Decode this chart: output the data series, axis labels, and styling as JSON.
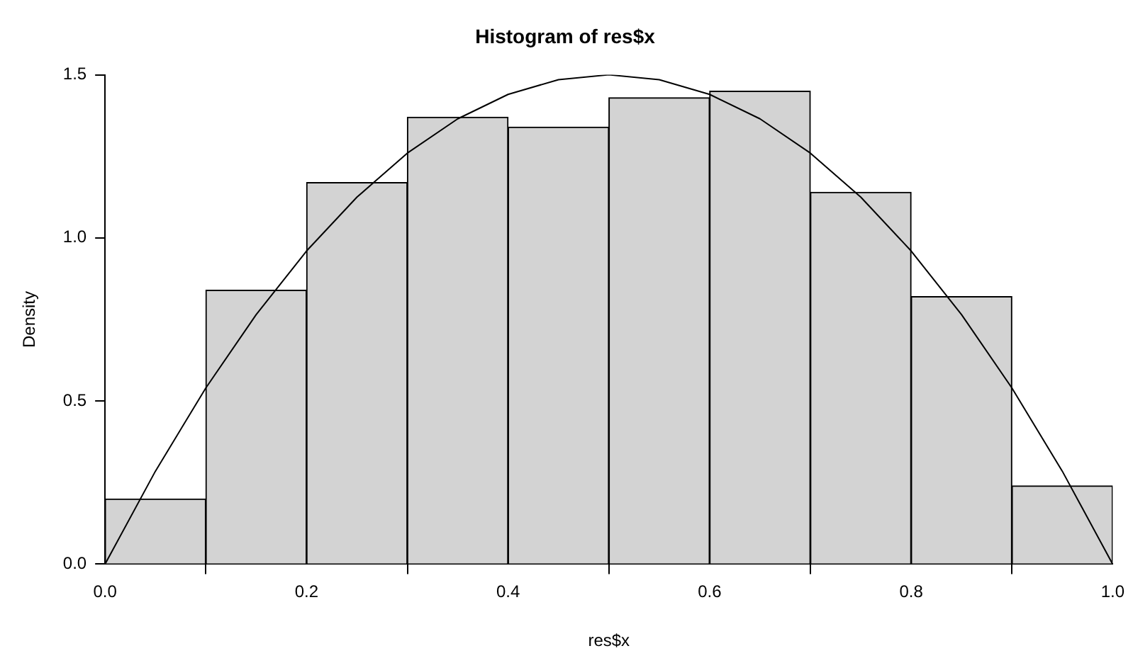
{
  "chart_data": {
    "type": "histogram",
    "title": "Histogram of res$x",
    "xlabel": "res$x",
    "ylabel": "Density",
    "bins": [
      0,
      0.1,
      0.2,
      0.3,
      0.4,
      0.5,
      0.6,
      0.7,
      0.8,
      0.9,
      1
    ],
    "values": [
      0.2,
      0.84,
      1.17,
      1.37,
      1.34,
      1.43,
      1.45,
      1.14,
      0.82,
      0.24
    ],
    "color": "#d3d3d3",
    "series": [
      {
        "type": "line",
        "color": "#000000",
        "x": [
          0,
          0.05,
          0.1,
          0.15,
          0.2,
          0.25,
          0.3,
          0.35,
          0.4,
          0.45,
          0.5,
          0.55,
          0.6,
          0.65,
          0.7,
          0.75,
          0.8,
          0.85,
          0.9,
          0.95,
          1
        ],
        "values": [
          0,
          0.285,
          0.54,
          0.765,
          0.96,
          1.125,
          1.26,
          1.365,
          1.44,
          1.485,
          1.5,
          1.485,
          1.44,
          1.365,
          1.26,
          1.125,
          0.96,
          0.765,
          0.54,
          0.285,
          0
        ]
      }
    ],
    "xlim": [
      0,
      1
    ],
    "ylim": [
      0,
      1.5
    ],
    "xticks": [
      {
        "value": 0,
        "label": "0.0"
      },
      {
        "value": 0.2,
        "label": "0.2"
      },
      {
        "value": 0.4,
        "label": "0.4"
      },
      {
        "value": 0.6,
        "label": "0.6"
      },
      {
        "value": 0.8,
        "label": "0.8"
      },
      {
        "value": 1,
        "label": "1.0"
      }
    ],
    "yticks": [
      {
        "value": 0,
        "label": "0.0"
      },
      {
        "value": 0.5,
        "label": "0.5"
      },
      {
        "value": 1,
        "label": "1.0"
      },
      {
        "value": 1.5,
        "label": "1.5"
      }
    ]
  }
}
